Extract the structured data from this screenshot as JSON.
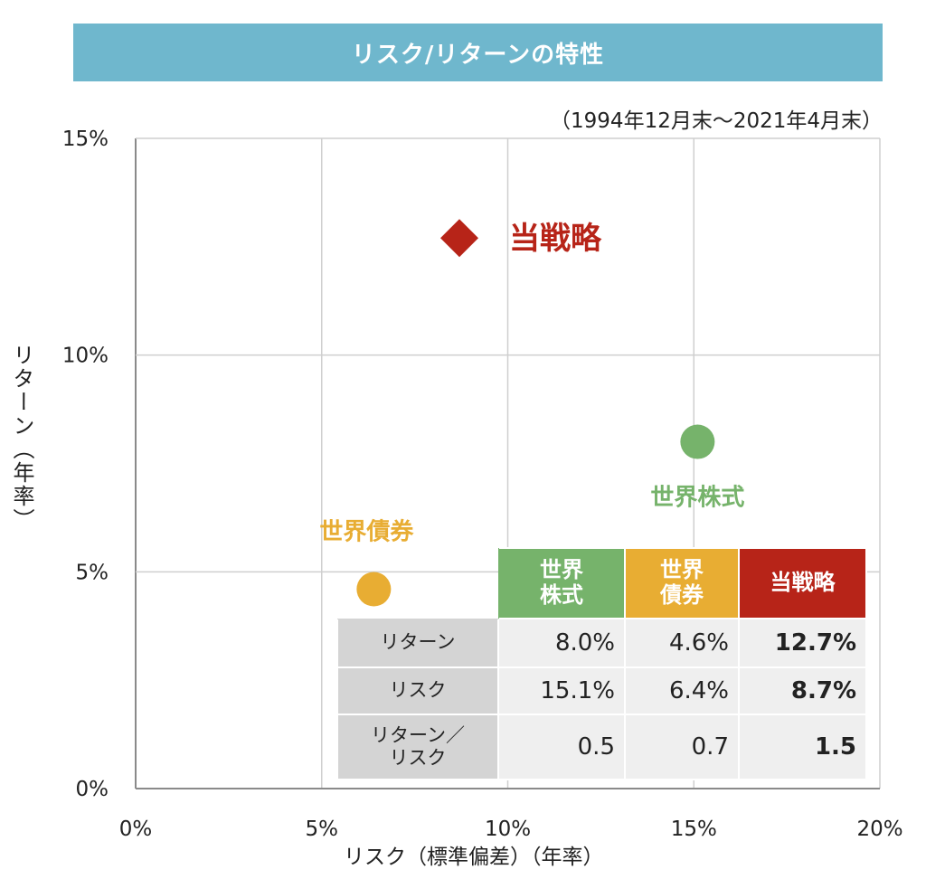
{
  "header": {
    "title": "リスク/リターンの特性"
  },
  "period_note": "（1994年12月末～2021年4月末）",
  "chart_data": {
    "type": "scatter",
    "xlabel": "リスク（標準偏差）（年率）",
    "ylabel": "リターン（年率）",
    "xlim": [
      0,
      20
    ],
    "ylim": [
      0,
      15
    ],
    "x_ticks": [
      "0%",
      "5%",
      "10%",
      "15%",
      "20%"
    ],
    "y_ticks": [
      "0%",
      "5%",
      "10%",
      "15%"
    ],
    "grid": true,
    "points": [
      {
        "name": "当戦略",
        "x": 8.7,
        "y": 12.7,
        "marker": "diamond",
        "color": "#b72418"
      },
      {
        "name": "世界株式",
        "x": 15.1,
        "y": 8.0,
        "marker": "circle",
        "color": "#76b36b"
      },
      {
        "name": "世界債券",
        "x": 6.4,
        "y": 4.6,
        "marker": "circle",
        "color": "#e8ad33"
      }
    ]
  },
  "table": {
    "columns": [
      {
        "label": "世界\n株式",
        "color": "#76b36b"
      },
      {
        "label": "世界\n債券",
        "color": "#e8ad33"
      },
      {
        "label": "当戦略",
        "color": "#b72418"
      }
    ],
    "rows": [
      {
        "label": "リターン",
        "values": [
          "8.0%",
          "4.6%",
          "12.7%"
        ]
      },
      {
        "label": "リスク",
        "values": [
          "15.1%",
          "6.4%",
          "8.7%"
        ]
      },
      {
        "label": "リターン／\nリスク",
        "values": [
          "0.5",
          "0.7",
          "1.5"
        ]
      }
    ]
  }
}
